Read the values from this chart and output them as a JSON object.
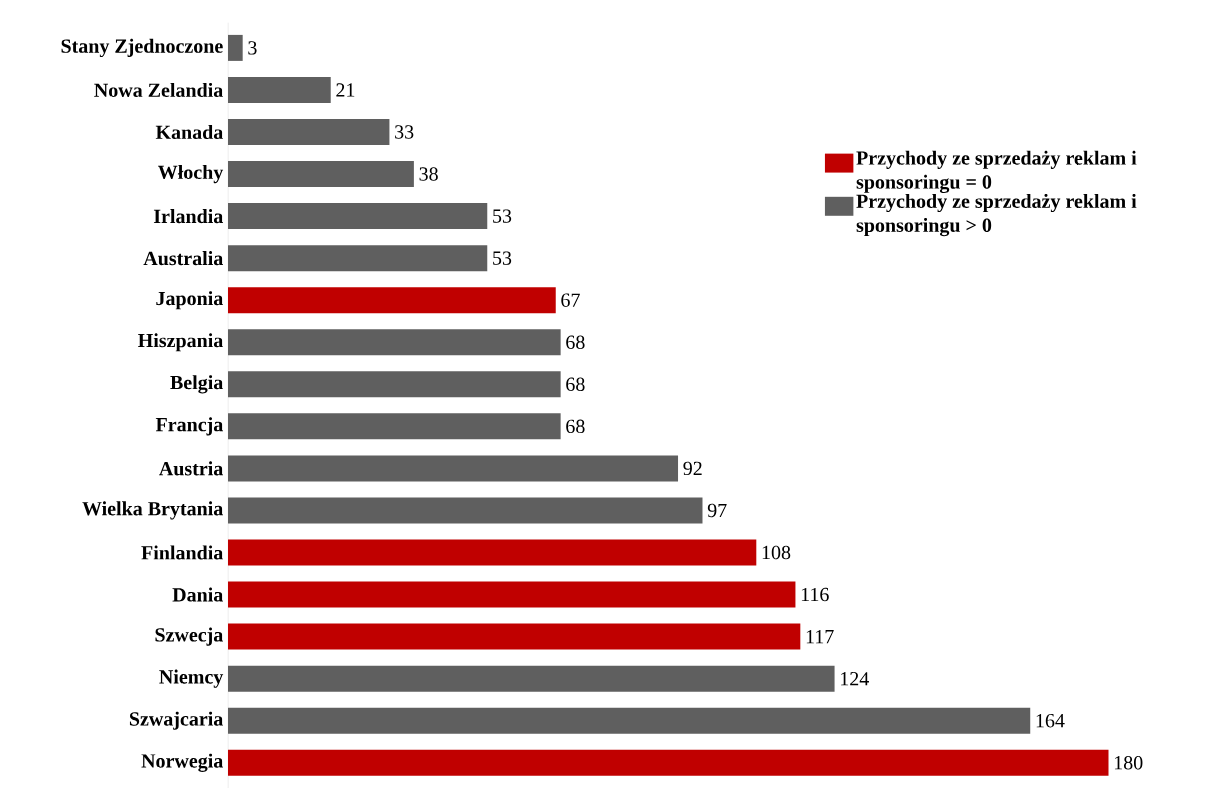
{
  "chart_data": {
    "type": "bar",
    "orientation": "horizontal",
    "data_labels": true,
    "legend": "right",
    "categories": [
      "Stany Zjednoczone",
      "Nowa Zelandia",
      "Kanada",
      "Włochy",
      "Irlandia",
      "Australia",
      "Japonia",
      "Hiszpania",
      "Belgia",
      "Francja",
      "Austria",
      "Wielka Brytania",
      "Finlandia",
      "Dania",
      "Szwecja",
      "Niemcy",
      "Szwajcaria",
      "Norwegia"
    ],
    "series": [
      {
        "name": "Przychody ze sprzedaży reklam i sponsoringu = 0",
        "color": "#c00000",
        "values": [
          null,
          null,
          null,
          null,
          null,
          null,
          67,
          null,
          null,
          null,
          null,
          null,
          108,
          116,
          117,
          null,
          null,
          180
        ]
      },
      {
        "name": "Przychody ze sprzedaży reklam i sponsoringu > 0",
        "color": "#5f5f5f",
        "values": [
          3,
          21,
          33,
          38,
          53,
          53,
          null,
          68,
          68,
          68,
          92,
          97,
          null,
          null,
          null,
          124,
          164,
          null
        ]
      }
    ]
  }
}
